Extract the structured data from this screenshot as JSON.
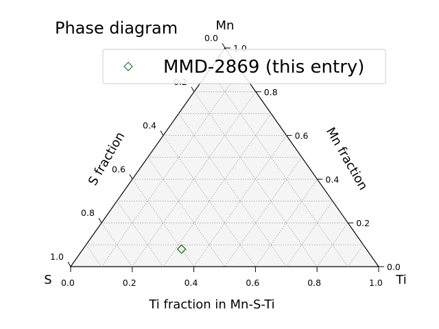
{
  "chart_data": {
    "type": "scatter",
    "title": "Phase diagram",
    "vertex_labels": {
      "top": "Mn",
      "left": "S",
      "right": "Ti"
    },
    "axes": {
      "bottom": {
        "label": "Ti fraction in Mn-S-Ti",
        "ticks": [
          "0.0",
          "0.2",
          "0.4",
          "0.6",
          "0.8",
          "1.0"
        ]
      },
      "left": {
        "label": "S fraction",
        "ticks": [
          "0.0",
          "0.2",
          "0.4",
          "0.6",
          "0.8",
          "1.0"
        ]
      },
      "right": {
        "label": "Mn fraction",
        "ticks": [
          "0.0",
          "0.2",
          "0.4",
          "0.6",
          "0.8",
          "1.0"
        ]
      }
    },
    "grid": true,
    "legend_position": "top-right",
    "series": [
      {
        "name": "MMD-2869 (this entry)",
        "marker": "diamond",
        "color": "#1a7a1a",
        "points": [
          {
            "Mn": 0.08,
            "S": 0.6,
            "Ti": 0.32
          }
        ]
      }
    ],
    "colors": {
      "triangle_fill": "#f5f5f5",
      "edge": "#000000",
      "grid": "#999999"
    }
  }
}
